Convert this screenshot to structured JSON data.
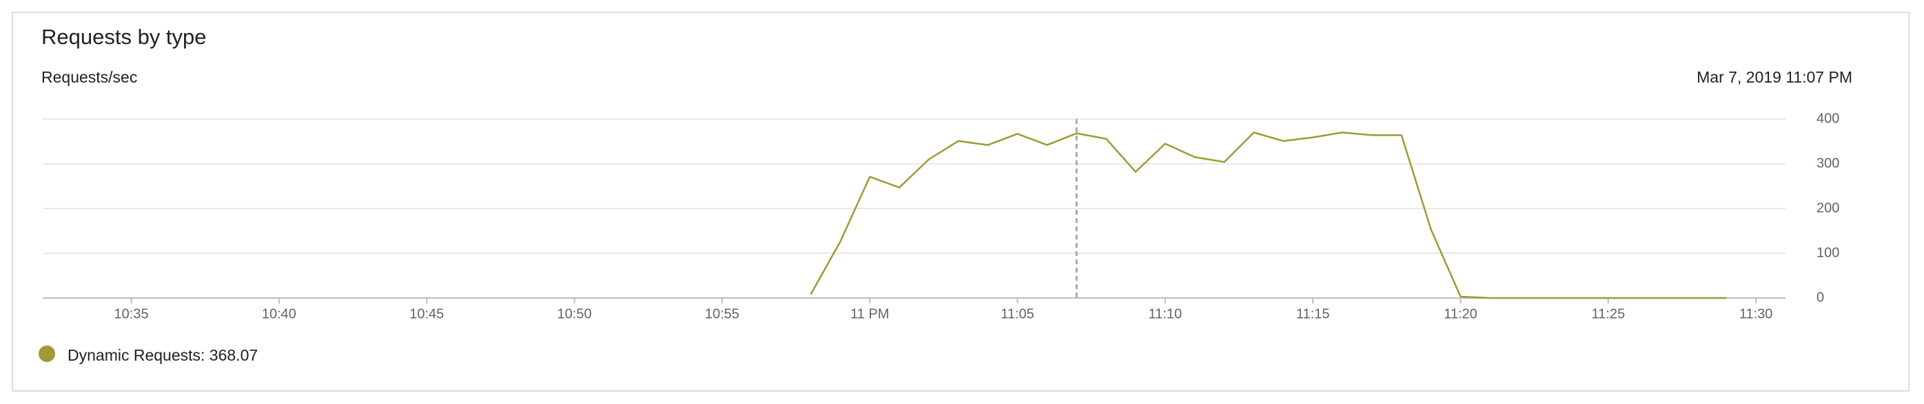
{
  "chart_data": {
    "type": "line",
    "title": "Requests by type",
    "y_label": "Requests/sec",
    "cursor": "23:07",
    "cursor_label": "Mar 7, 2019 11:07 PM",
    "x": [
      "22:58",
      "22:59",
      "23:00",
      "23:01",
      "23:02",
      "23:03",
      "23:04",
      "23:05",
      "23:06",
      "23:07",
      "23:08",
      "23:09",
      "23:10",
      "23:11",
      "23:12",
      "23:13",
      "23:14",
      "23:15",
      "23:16",
      "23:17",
      "23:18",
      "23:19",
      "23:20",
      "23:21",
      "23:22",
      "23:23",
      "23:24",
      "23:25",
      "23:26",
      "23:27",
      "23:28",
      "23:29"
    ],
    "series": [
      {
        "name": "Dynamic Requests: 368.07",
        "color": "#9e9a34",
        "values": [
          8,
          126,
          271,
          247,
          310,
          351,
          342,
          367,
          342,
          368.07,
          356,
          282,
          345,
          315,
          304,
          370,
          351,
          359,
          370,
          364,
          364,
          153,
          3,
          0,
          0,
          0,
          0,
          0,
          0,
          0,
          0,
          0
        ]
      }
    ],
    "xlim": [
      "22:32",
      "23:31"
    ],
    "xticks": [
      {
        "value": "22:35",
        "label": "10:35"
      },
      {
        "value": "22:40",
        "label": "10:40"
      },
      {
        "value": "22:45",
        "label": "10:45"
      },
      {
        "value": "22:50",
        "label": "10:50"
      },
      {
        "value": "22:55",
        "label": "10:55"
      },
      {
        "value": "23:00",
        "label": "11 PM"
      },
      {
        "value": "23:05",
        "label": "11:05"
      },
      {
        "value": "23:10",
        "label": "11:10"
      },
      {
        "value": "23:15",
        "label": "11:15"
      },
      {
        "value": "23:20",
        "label": "11:20"
      },
      {
        "value": "23:25",
        "label": "11:25"
      },
      {
        "value": "23:30",
        "label": "11:30"
      }
    ],
    "ylim": [
      0,
      400
    ],
    "yticks": [
      0,
      100,
      200,
      300,
      400
    ],
    "grid": true
  }
}
